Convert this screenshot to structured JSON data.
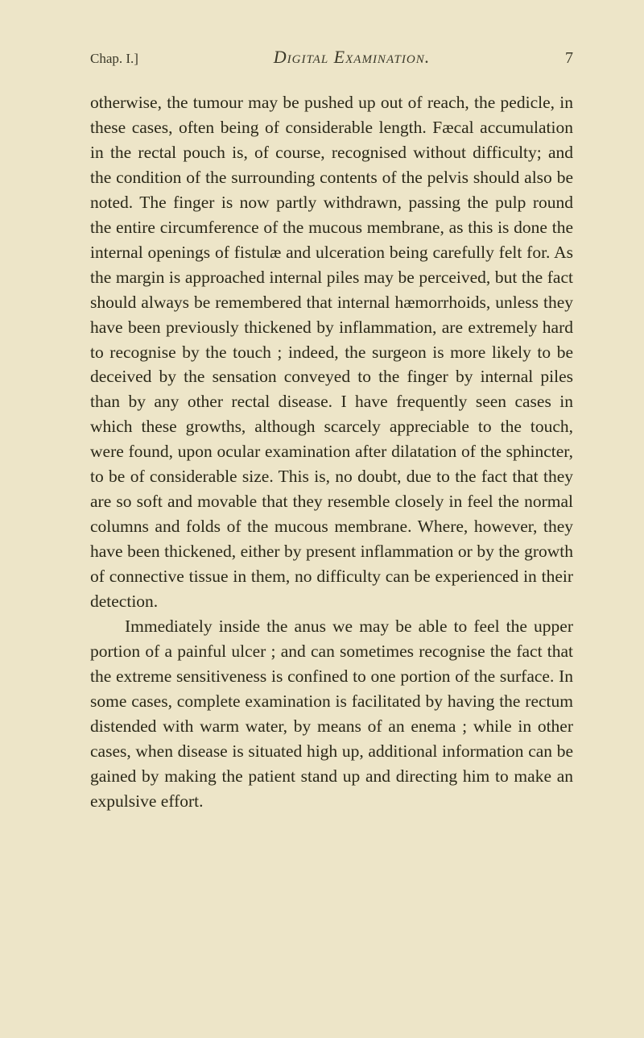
{
  "header": {
    "chapter": "Chap. I.]",
    "title": "Digital Examination.",
    "page_number": "7"
  },
  "paragraphs": {
    "p1": "otherwise, the tumour may be pushed up out of reach, the pedicle, in these cases, often being of considerable length. Fæcal accumulation in the rectal pouch is, of course, recognised without difficulty; and the condition of the surrounding contents of the pelvis should also be noted. The finger is now partly withdrawn, passing the pulp round the entire circumference of the mucous membrane, as this is done the internal openings of fistulæ and ulceration being carefully felt for. As the margin is approached internal piles may be perceived, but the fact should always be remembered that internal hæmorrhoids, unless they have been previously thickened by inflammation, are extremely hard to recognise by the touch ; indeed, the surgeon is more likely to be deceived by the sensation conveyed to the finger by internal piles than by any other rectal disease. I have frequently seen cases in which these growths, although scarcely appreciable to the touch, were found, upon ocular examination after dilatation of the sphincter, to be of considerable size. This is, no doubt, due to the fact that they are so soft and movable that they resemble closely in feel the normal columns and folds of the mucous membrane. Where, however, they have been thickened, either by present inflammation or by the growth of connective tissue in them, no difficulty can be experienced in their detection.",
    "p2": "Immediately inside the anus we may be able to feel the upper portion of a painful ulcer ; and can sometimes recognise the fact that the extreme sensitiveness is confined to one portion of the surface. In some cases, complete examination is facilitated by having the rectum distended with warm water, by means of an enema ; while in other cases, when disease is situated high up, additional information can be gained by making the patient stand up and directing him to make an expulsive effort."
  },
  "colors": {
    "background": "#ede5c8",
    "text": "#2a2818",
    "header_text": "#3a3828"
  },
  "typography": {
    "body_fontsize": 21.5,
    "line_height": 1.44,
    "header_fontsize": 18,
    "title_fontsize": 22
  }
}
